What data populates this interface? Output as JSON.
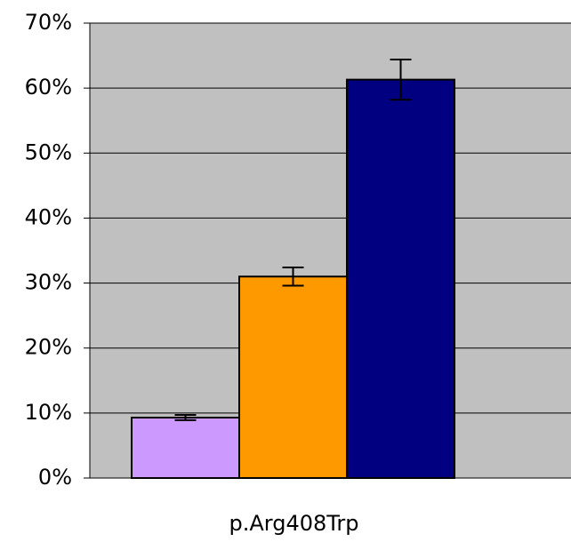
{
  "chart_data": {
    "type": "bar",
    "categories": [
      "p.Arg408Trp"
    ],
    "series": [
      {
        "color": "#cc99ff",
        "values": [
          9.3
        ],
        "errors": [
          0.4
        ]
      },
      {
        "color": "#ff9900",
        "values": [
          31
        ],
        "errors": [
          1.4
        ]
      },
      {
        "color": "#000080",
        "values": [
          61.3
        ],
        "errors": [
          3.1
        ]
      }
    ],
    "ylim": [
      0,
      70
    ],
    "yticks": [
      {
        "value": 0,
        "label": "0%"
      },
      {
        "value": 10,
        "label": "10%"
      },
      {
        "value": 20,
        "label": "20%"
      },
      {
        "value": 30,
        "label": "30%"
      },
      {
        "value": 40,
        "label": "40%"
      },
      {
        "value": 50,
        "label": "50%"
      },
      {
        "value": 60,
        "label": "60%"
      },
      {
        "value": 70,
        "label": "70%"
      }
    ],
    "grid": true,
    "plot_background": "#c0c0c0"
  }
}
